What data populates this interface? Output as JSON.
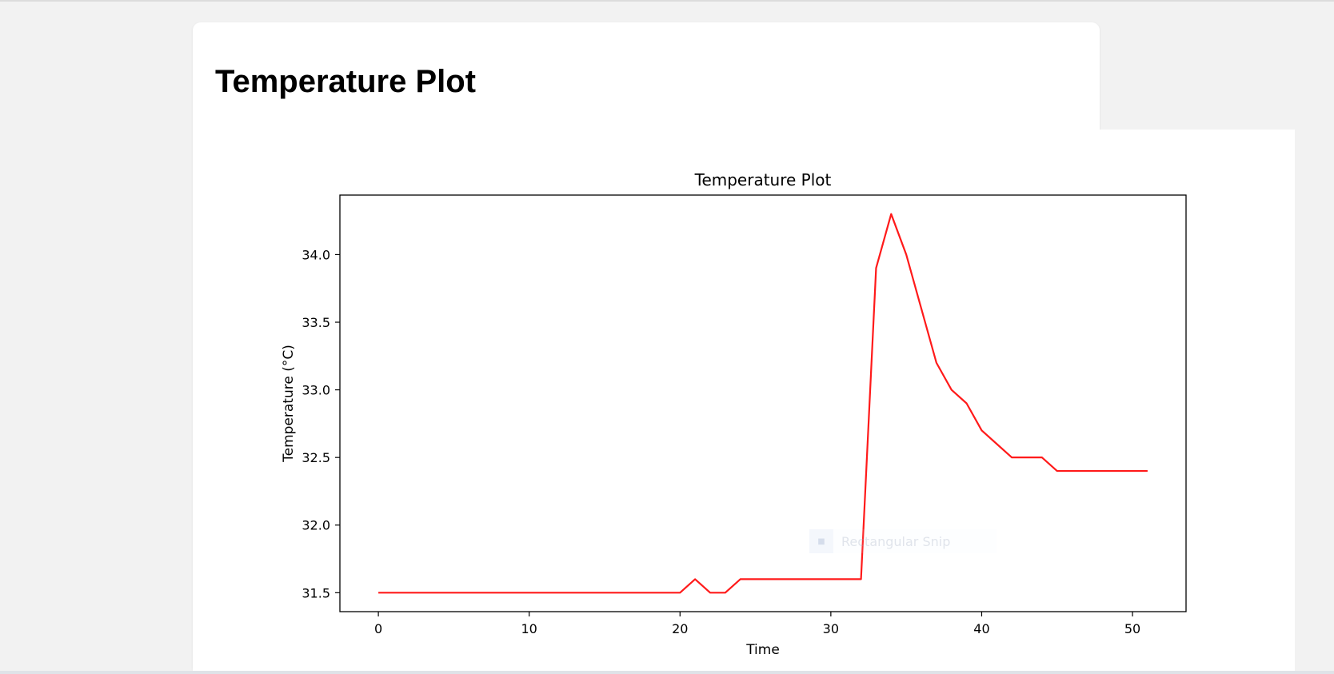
{
  "page": {
    "heading": "Temperature Plot"
  },
  "overlay": {
    "snip_label": "Rectangular Snip",
    "snip_icon": "snip-icon"
  },
  "colors": {
    "line": "#ff1a1a",
    "axes": "#000000"
  },
  "chart_data": {
    "type": "line",
    "title": "Temperature Plot",
    "xlabel": "Time",
    "ylabel": "Temperature (°C)",
    "xlim": [
      -2.55,
      53.55
    ],
    "ylim": [
      31.36,
      34.44
    ],
    "xticks": [
      0,
      10,
      20,
      30,
      40,
      50
    ],
    "yticks": [
      31.5,
      32.0,
      32.5,
      33.0,
      33.5,
      34.0
    ],
    "xtick_labels": [
      "0",
      "10",
      "20",
      "30",
      "40",
      "50"
    ],
    "ytick_labels": [
      "31.5",
      "32.0",
      "32.5",
      "33.0",
      "33.5",
      "34.0"
    ],
    "grid": false,
    "series": [
      {
        "color": "#ff1a1a",
        "x": [
          0,
          1,
          2,
          3,
          4,
          5,
          6,
          7,
          8,
          9,
          10,
          11,
          12,
          13,
          14,
          15,
          16,
          17,
          18,
          19,
          20,
          21,
          22,
          23,
          24,
          25,
          26,
          27,
          28,
          29,
          30,
          31,
          32,
          33,
          34,
          35,
          36,
          37,
          38,
          39,
          40,
          41,
          42,
          43,
          44,
          45,
          46,
          47,
          48,
          49,
          50,
          51
        ],
        "y": [
          31.5,
          31.5,
          31.5,
          31.5,
          31.5,
          31.5,
          31.5,
          31.5,
          31.5,
          31.5,
          31.5,
          31.5,
          31.5,
          31.5,
          31.5,
          31.5,
          31.5,
          31.5,
          31.5,
          31.5,
          31.5,
          31.6,
          31.5,
          31.5,
          31.6,
          31.6,
          31.6,
          31.6,
          31.6,
          31.6,
          31.6,
          31.6,
          31.6,
          33.9,
          34.3,
          34.0,
          33.6,
          33.2,
          33.0,
          32.9,
          32.7,
          32.6,
          32.5,
          32.5,
          32.5,
          32.4,
          32.4,
          32.4,
          32.4,
          32.4,
          32.4,
          32.4
        ]
      }
    ]
  }
}
